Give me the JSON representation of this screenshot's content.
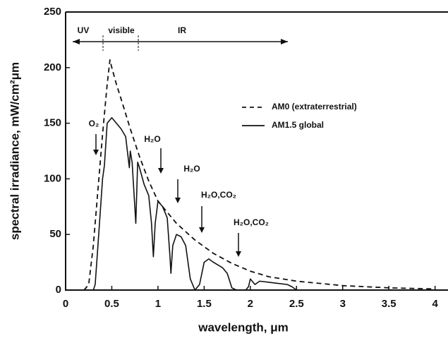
{
  "chart_data": {
    "type": "line",
    "x_label": "wavelength, μm",
    "y_label": "spectral irradiance, mW/cm²μm",
    "xlim": [
      0,
      4.14
    ],
    "ylim": [
      0,
      250
    ],
    "xticks": [
      0,
      0.5,
      1,
      1.5,
      2,
      2.5,
      3,
      3.5,
      4
    ],
    "yticks": [
      0,
      50,
      100,
      150,
      200,
      250
    ],
    "legend": "right",
    "regions": [
      "UV",
      "visible",
      "IR"
    ],
    "annotations": [
      "O₂",
      "H₂O",
      "H₂O",
      "H₂O,CO₂",
      "H₂O,CO₂"
    ],
    "series": [
      {
        "name": "AM0 (extraterrestrial)",
        "color": "#111111",
        "dashed": true,
        "x": [
          0.2,
          0.25,
          0.3,
          0.35,
          0.4,
          0.45,
          0.48,
          0.5,
          0.55,
          0.6,
          0.7,
          0.8,
          0.9,
          1.0,
          1.2,
          1.4,
          1.6,
          1.8,
          2.0,
          2.2,
          2.5,
          3.0,
          3.5,
          4.0
        ],
        "values": [
          0,
          5,
          40,
          90,
          140,
          185,
          207,
          200,
          185,
          172,
          145,
          120,
          98,
          80,
          60,
          45,
          33,
          24,
          17,
          12,
          8,
          4,
          2,
          1
        ]
      },
      {
        "name": "AM1.5 global",
        "color": "#111111",
        "dashed": false,
        "x": [
          0.3,
          0.32,
          0.35,
          0.4,
          0.42,
          0.45,
          0.5,
          0.55,
          0.6,
          0.65,
          0.69,
          0.7,
          0.72,
          0.76,
          0.78,
          0.8,
          0.85,
          0.9,
          0.93,
          0.95,
          0.97,
          1.0,
          1.05,
          1.1,
          1.13,
          1.14,
          1.16,
          1.2,
          1.25,
          1.3,
          1.35,
          1.4,
          1.45,
          1.5,
          1.55,
          1.6,
          1.7,
          1.75,
          1.8,
          1.85,
          1.95,
          1.98,
          2.0,
          2.05,
          2.1,
          2.2,
          2.3,
          2.4,
          2.45,
          2.5
        ],
        "values": [
          0,
          5,
          40,
          100,
          112,
          150,
          155,
          150,
          145,
          138,
          110,
          125,
          115,
          60,
          115,
          110,
          95,
          85,
          60,
          30,
          60,
          80,
          75,
          65,
          30,
          15,
          40,
          50,
          48,
          40,
          10,
          0,
          5,
          25,
          28,
          25,
          20,
          15,
          2,
          0,
          0,
          3,
          10,
          5,
          8,
          7,
          6,
          5,
          3,
          0
        ]
      }
    ]
  }
}
